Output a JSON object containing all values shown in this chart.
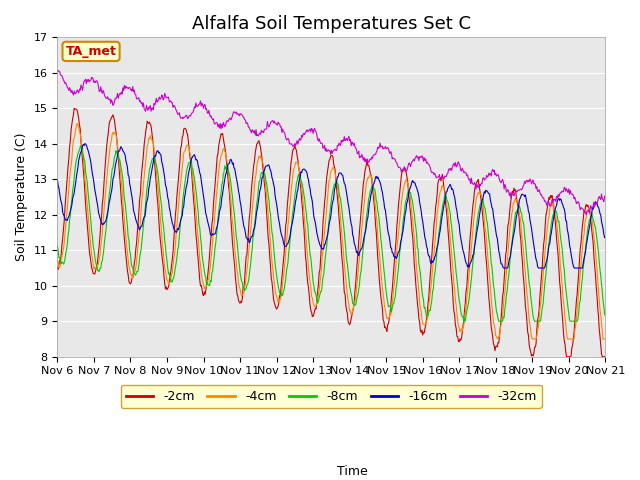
{
  "title": "Alfalfa Soil Temperatures Set C",
  "xlabel": "Time",
  "ylabel": "Soil Temperature (C)",
  "ylim": [
    8.0,
    17.0
  ],
  "yticks": [
    8.0,
    9.0,
    10.0,
    11.0,
    12.0,
    13.0,
    14.0,
    15.0,
    16.0,
    17.0
  ],
  "xtick_labels": [
    "Nov 6",
    "Nov 7",
    "Nov 8",
    "Nov 9",
    "Nov 10",
    "Nov 11",
    "Nov 12",
    "Nov 13",
    "Nov 14",
    "Nov 15",
    "Nov 16",
    "Nov 17",
    "Nov 18",
    "Nov 19",
    "Nov 20",
    "Nov 21"
  ],
  "series_labels": [
    "-2cm",
    "-4cm",
    "-8cm",
    "-16cm",
    "-32cm"
  ],
  "series_colors": [
    "#cc0000",
    "#ff8800",
    "#00cc00",
    "#0000cc",
    "#cc00cc"
  ],
  "legend_box_color": "#ffffcc",
  "legend_box_edge": "#cc8800",
  "annotation_text": "TA_met",
  "annotation_color": "#cc0000",
  "annotation_bg": "#ffffcc",
  "annotation_edge": "#cc8800",
  "bg_color": "#e8e8e8",
  "fig_bg_color": "#ffffff",
  "title_fontsize": 13,
  "axis_fontsize": 9,
  "tick_fontsize": 8,
  "legend_fontsize": 9
}
